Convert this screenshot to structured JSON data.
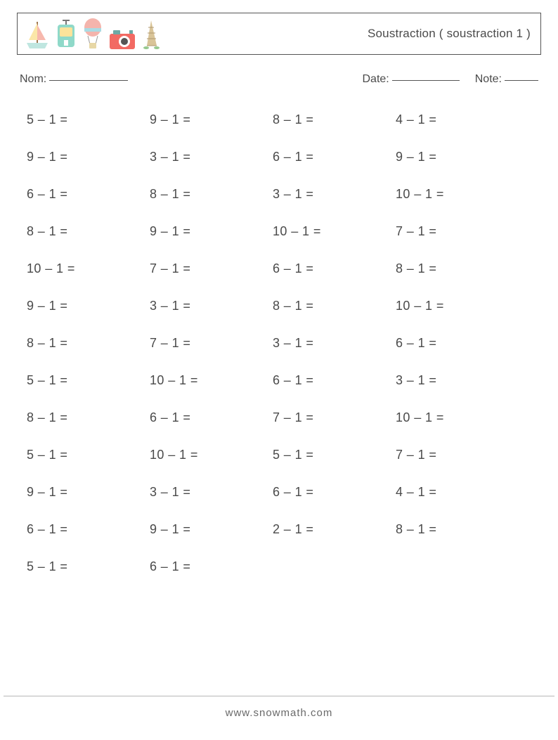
{
  "page_bg": "#ffffff",
  "text_color": "#4a4a4a",
  "title": "Soustraction ( soustraction 1 )",
  "labels": {
    "nom": "Nom:",
    "date": "Date:",
    "note": "Note:"
  },
  "footer": "www.snowmath.com",
  "problems": [
    [
      "5 – 1 =",
      "9 – 1 =",
      "8 – 1 =",
      "4 – 1 ="
    ],
    [
      "9 – 1 =",
      "3 – 1 =",
      "6 – 1 =",
      "9 – 1 ="
    ],
    [
      "6 – 1 =",
      "8 – 1 =",
      "3 – 1 =",
      "10 – 1 ="
    ],
    [
      "8 – 1 =",
      "9 – 1 =",
      "10 – 1 =",
      "7 – 1 ="
    ],
    [
      "10 – 1 =",
      "7 – 1 =",
      "6 – 1 =",
      "8 – 1 ="
    ],
    [
      "9 – 1 =",
      "3 – 1 =",
      "8 – 1 =",
      "10 – 1 ="
    ],
    [
      "8 – 1 =",
      "7 – 1 =",
      "3 – 1 =",
      "6 – 1 ="
    ],
    [
      "5 – 1 =",
      "10 – 1 =",
      "6 – 1 =",
      "3 – 1 ="
    ],
    [
      "8 – 1 =",
      "6 – 1 =",
      "7 – 1 =",
      "10 – 1 ="
    ],
    [
      "5 – 1 =",
      "10 – 1 =",
      "5 – 1 =",
      "7 – 1 ="
    ],
    [
      "9 – 1 =",
      "3 – 1 =",
      "6 – 1 =",
      "4 – 1 ="
    ],
    [
      "6 – 1 =",
      "9 – 1 =",
      "2 – 1 =",
      "8 – 1 ="
    ],
    [
      "5 – 1 =",
      "6 – 1 =",
      "",
      ""
    ]
  ],
  "icon_colors": {
    "boat_hull": "#bfe6e0",
    "boat_sail": "#fbe7a8",
    "tram_body": "#8fd9c9",
    "tram_window": "#fce39a",
    "balloon_top": "#f4b4ac",
    "balloon_band": "#a9dbe3",
    "camera_body": "#f26a63",
    "camera_top": "#6da9a5",
    "tower": "#d9c498",
    "grass": "#96c98f"
  }
}
